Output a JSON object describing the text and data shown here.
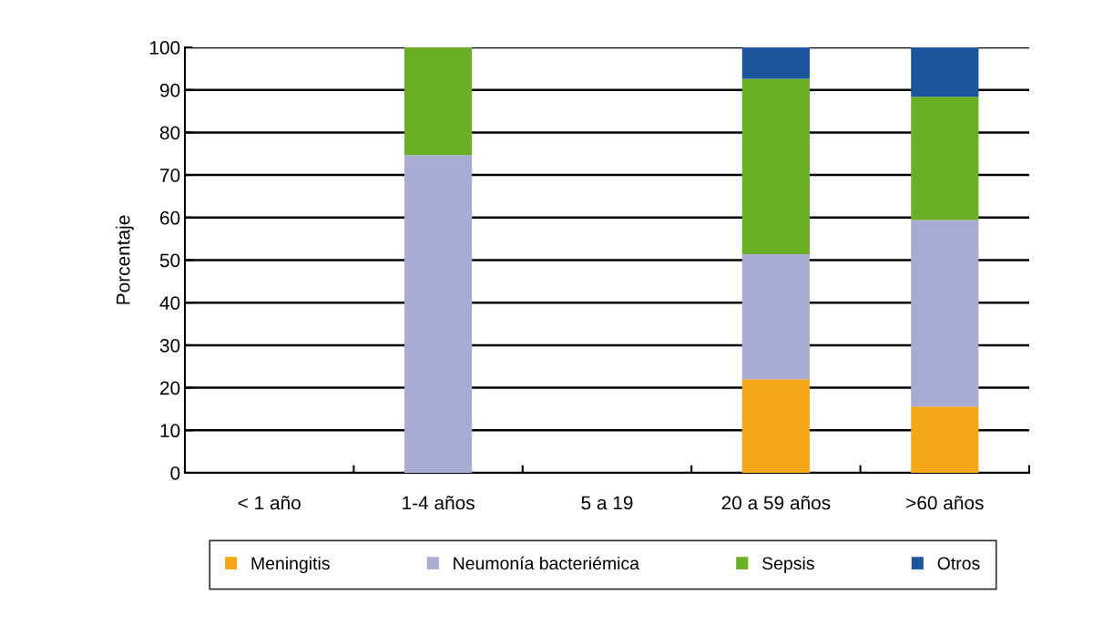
{
  "chart_data": {
    "type": "bar",
    "stacked": true,
    "ylabel": "Porcentaje",
    "categories": [
      "< 1 año",
      "1-4 años",
      "5 a 19",
      "20 a 59 años",
      ">60 años"
    ],
    "series": [
      {
        "name": "Meningitis",
        "color": "#f5a817",
        "values": [
          null,
          null,
          null,
          22,
          15.6
        ]
      },
      {
        "name": "Neumonía bacteriémica",
        "color": "#a9acd2",
        "values": [
          null,
          74.7,
          null,
          29.4,
          43.8
        ]
      },
      {
        "name": "Sepsis",
        "color": "#6aaf24",
        "values": [
          null,
          25.3,
          null,
          41.2,
          29.0
        ]
      },
      {
        "name": "Otros",
        "color": "#1e549c",
        "values": [
          null,
          null,
          null,
          7.4,
          11.6
        ]
      }
    ],
    "ylim": [
      0,
      100
    ],
    "yticks": [
      0,
      10,
      20,
      30,
      40,
      50,
      60,
      70,
      80,
      90,
      100
    ],
    "grid": "y",
    "legend": "bottom"
  }
}
